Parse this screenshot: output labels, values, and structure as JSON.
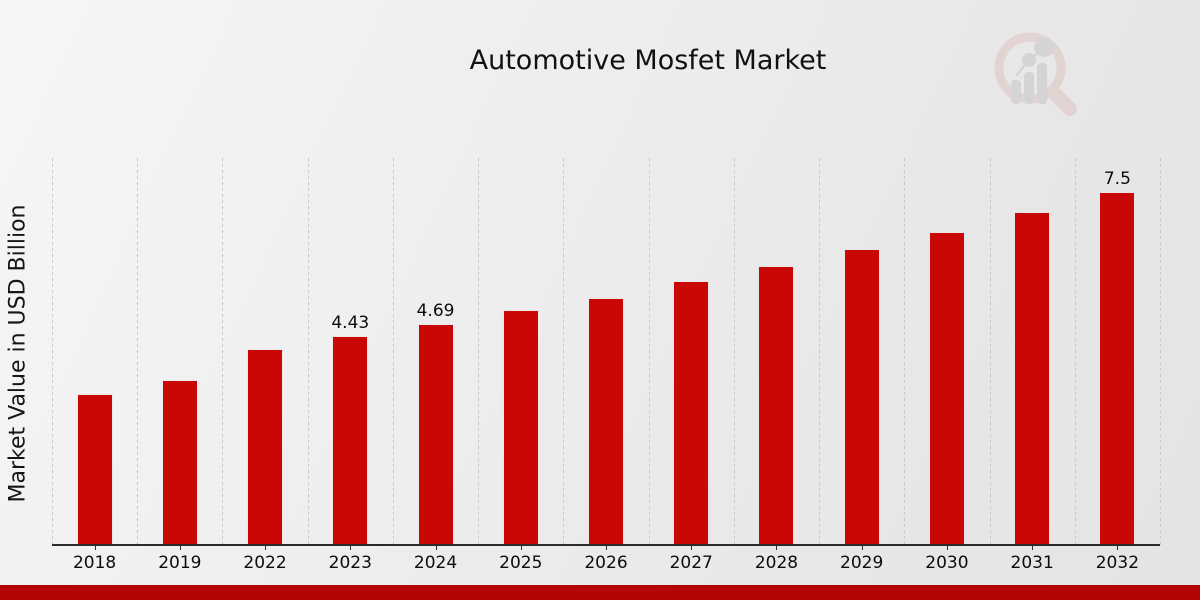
{
  "title": "Automotive Mosfet Market",
  "header": {
    "logo_name": "market-research-future-magnifier-logo"
  },
  "colors": {
    "bar": "#c90707",
    "bottom_strip": "#b40505",
    "gridline": "#c7c7c7",
    "axis": "#2b2b2b",
    "text": "#0c0c0c",
    "logo_ring": "#dfc3c3",
    "logo_gray": "#c6c6c6"
  },
  "chart_data": {
    "type": "bar",
    "title": "Automotive Mosfet Market",
    "xlabel": "",
    "ylabel": "Market Value in USD Billion",
    "categories": [
      "2018",
      "2019",
      "2022",
      "2023",
      "2024",
      "2025",
      "2026",
      "2027",
      "2028",
      "2029",
      "2030",
      "2031",
      "2032"
    ],
    "values": [
      3.2,
      3.5,
      4.15,
      4.43,
      4.69,
      4.98,
      5.25,
      5.6,
      5.92,
      6.28,
      6.66,
      7.08,
      7.5
    ],
    "data_labels": [
      "",
      "",
      "",
      "4.43",
      "4.69",
      "",
      "",
      "",
      "",
      "",
      "",
      "",
      "7.5"
    ],
    "ylim": [
      0,
      8.25
    ],
    "grid": "vertical-dashed",
    "legend": "none",
    "bar_color": "#c90707"
  }
}
